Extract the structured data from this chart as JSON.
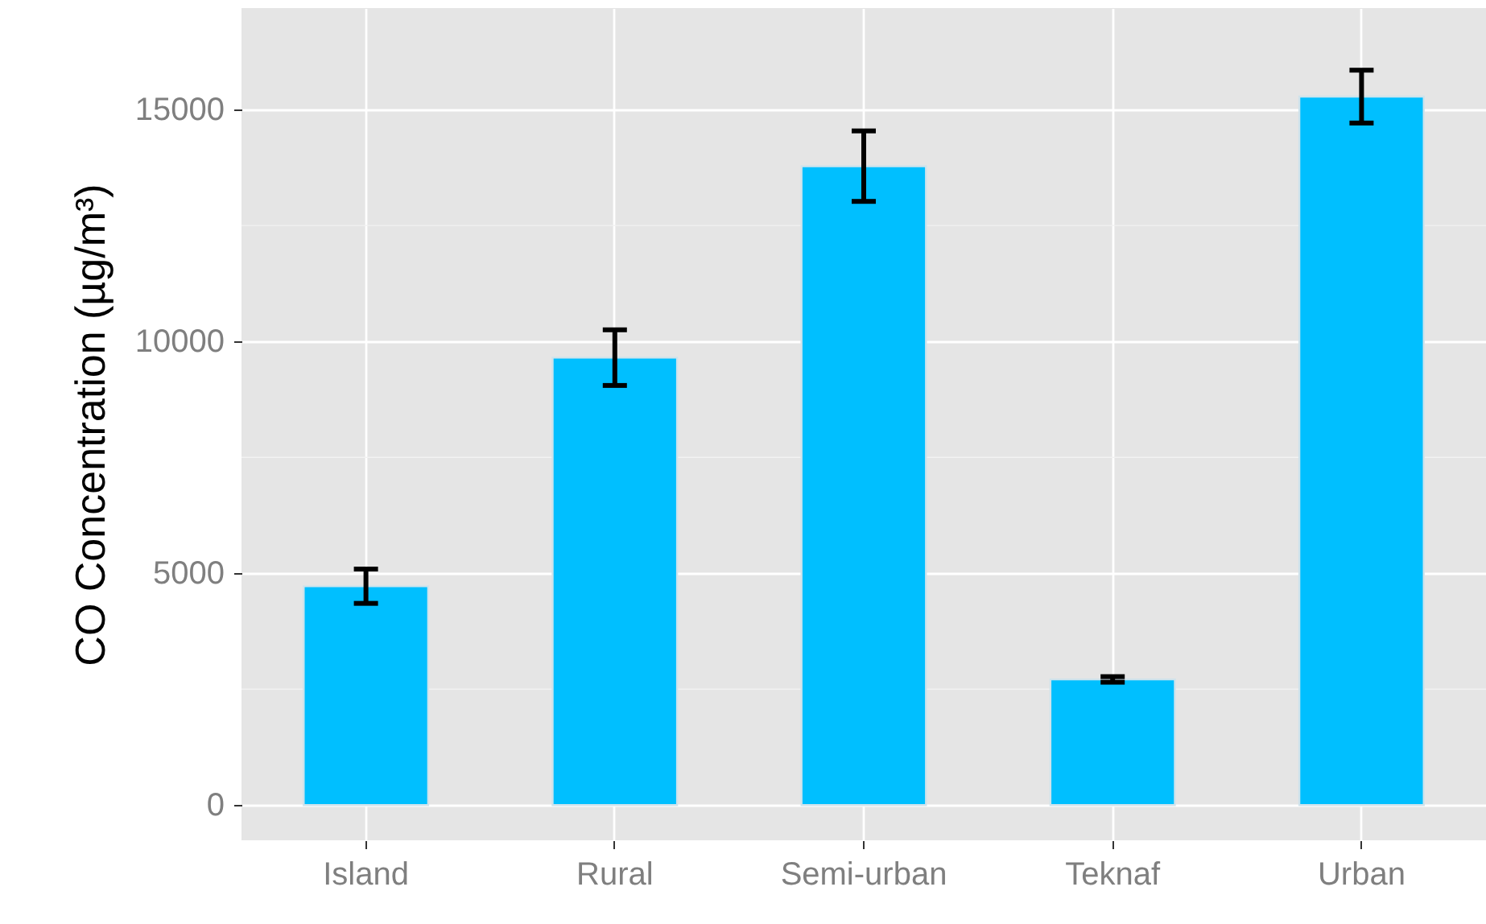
{
  "chart_data": {
    "type": "bar",
    "ylabel": "CO Concentration (µg/m³)",
    "categories": [
      "Island",
      "Rural",
      "Semi-urban",
      "Teknaf",
      "Urban"
    ],
    "values": [
      4720,
      9650,
      13780,
      2710,
      15280
    ],
    "errors": [
      370,
      600,
      760,
      60,
      570
    ],
    "color": "#00bfff",
    "ylim": [
      -760,
      17190
    ],
    "yticks": [
      0,
      5000,
      10000,
      15000
    ],
    "grid": true
  }
}
